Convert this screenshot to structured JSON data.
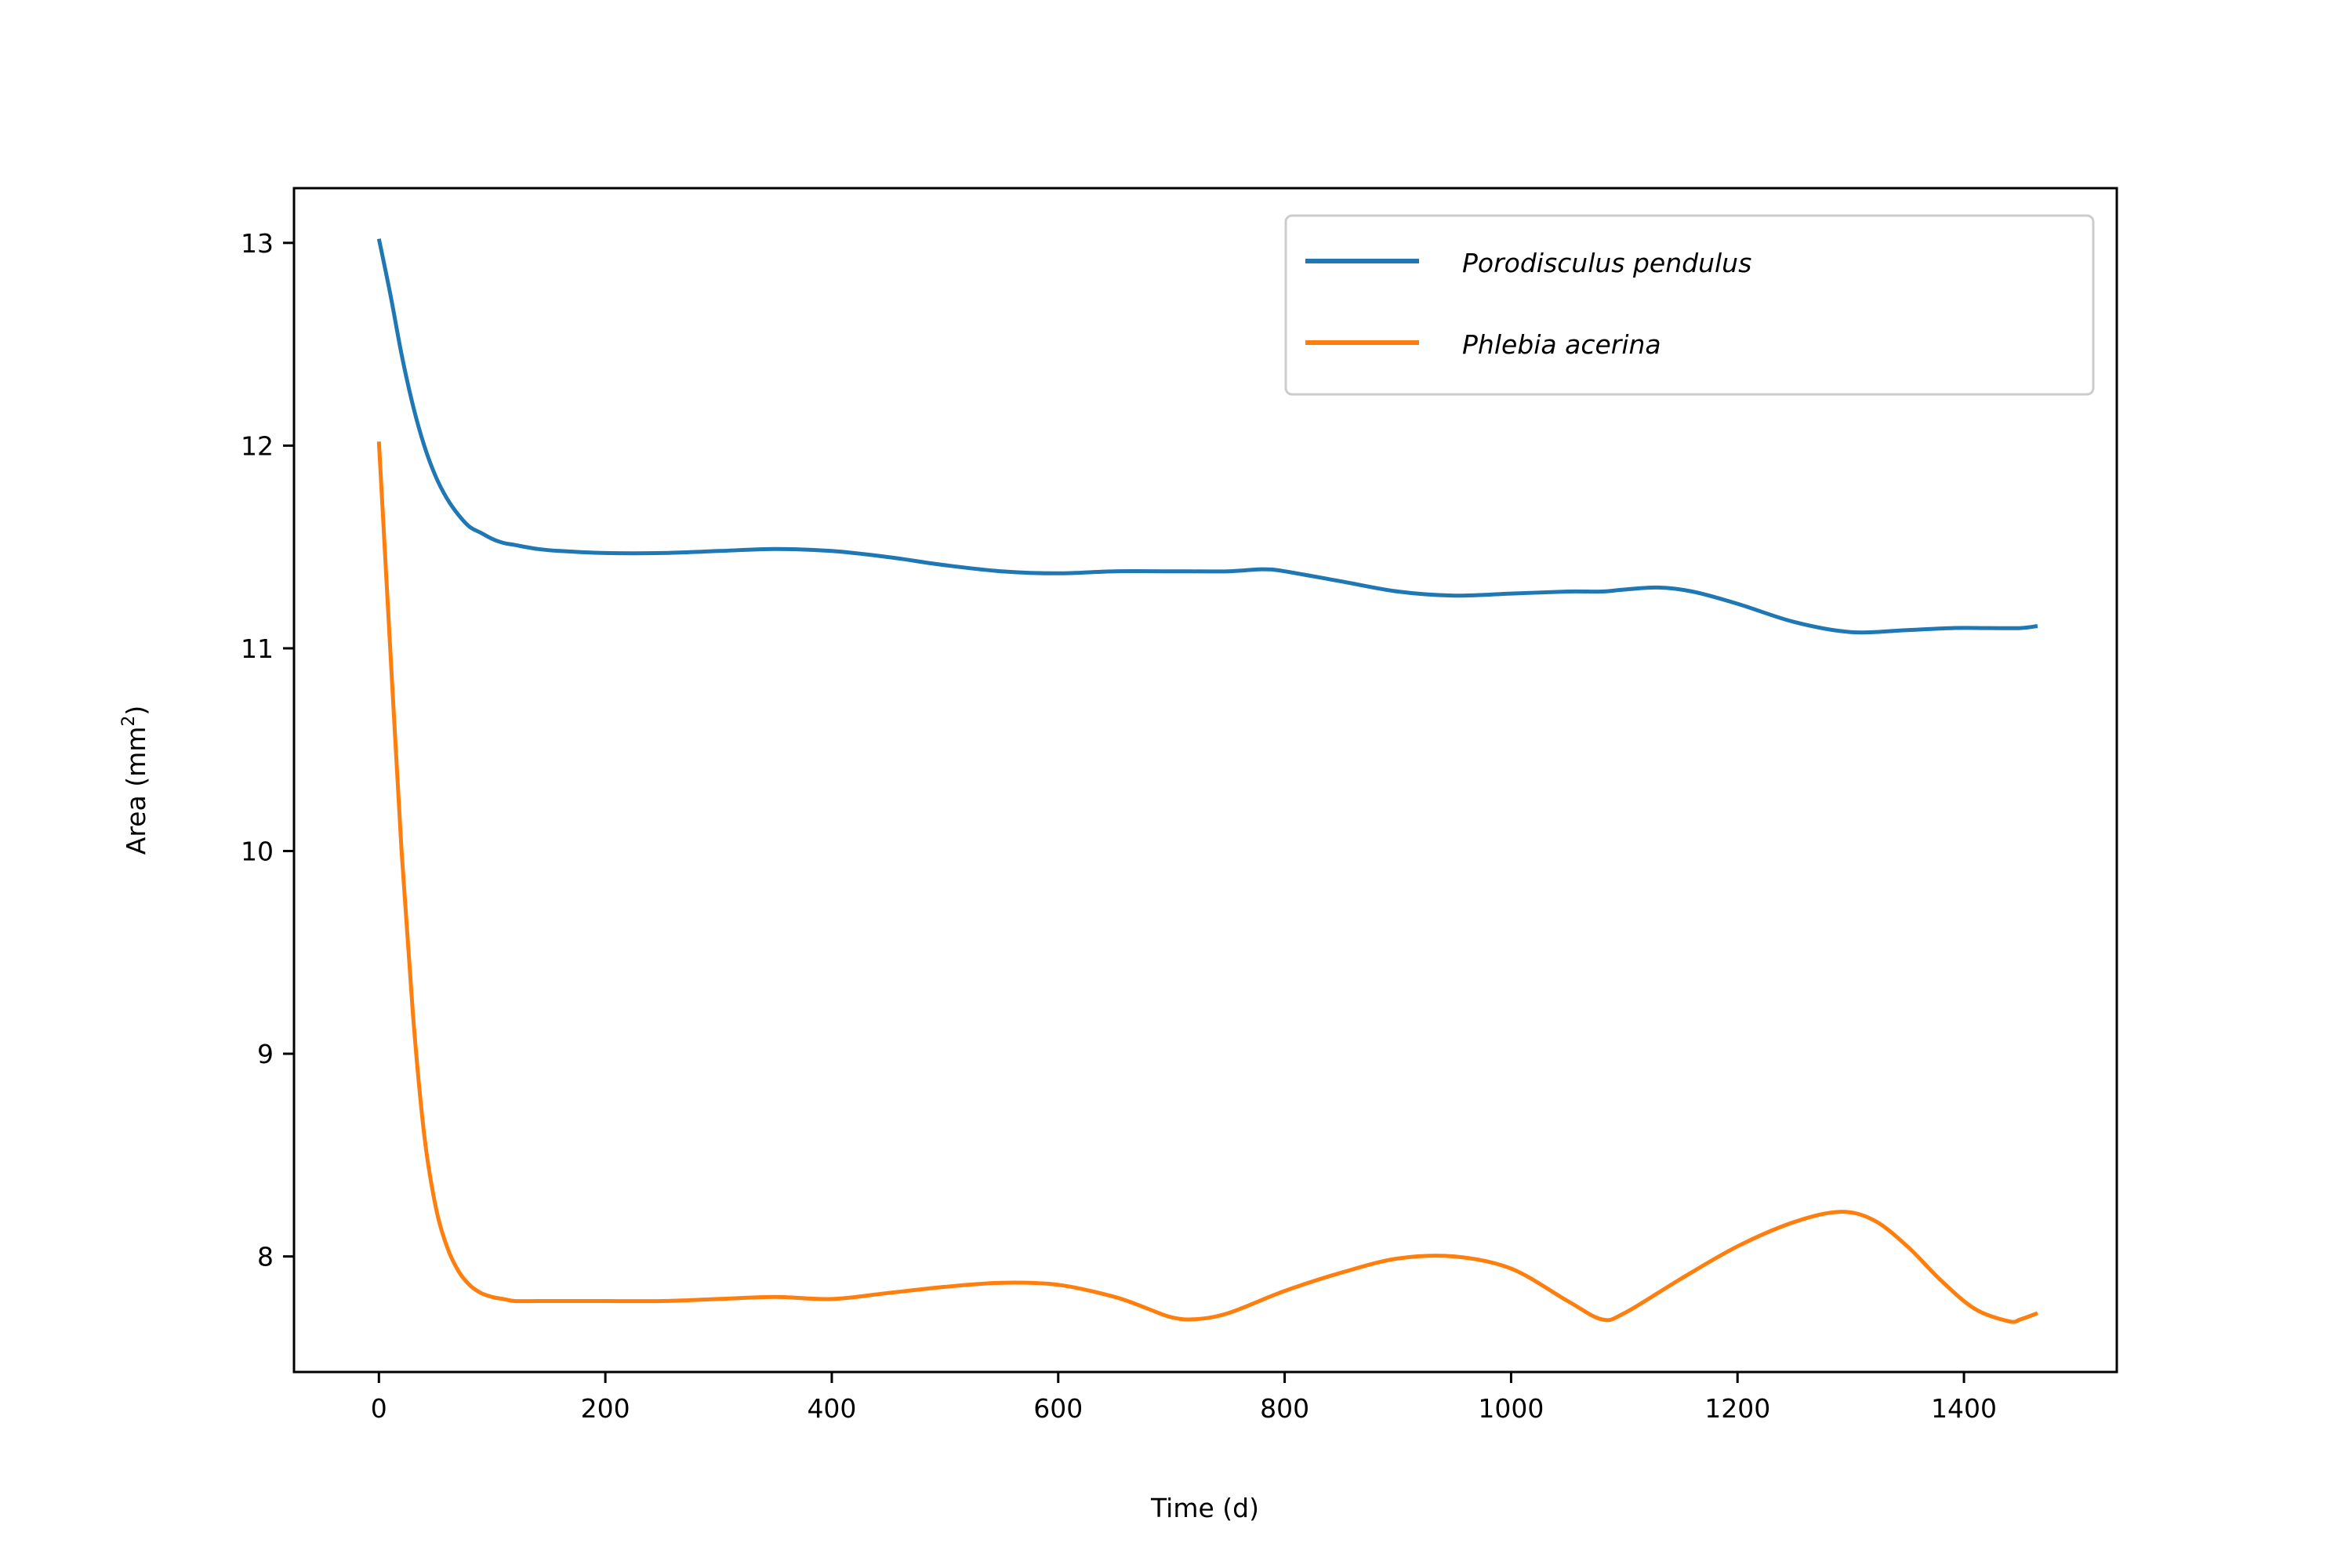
{
  "chart_data": {
    "type": "line",
    "title": "",
    "xlabel": "Time (d)",
    "ylabel_main": "Area (mm",
    "ylabel_sup": "2",
    "ylabel_close": ")",
    "xlim": [
      -75,
      1535
    ],
    "ylim": [
      7.43,
      13.27
    ],
    "xticks": [
      0,
      200,
      400,
      600,
      800,
      1000,
      1200,
      1400
    ],
    "yticks": [
      8,
      9,
      10,
      11,
      12,
      13
    ],
    "legend_position": "top-right",
    "grid": false,
    "series": [
      {
        "name": "Porodisculus pendulus",
        "color": "#1f77b4",
        "x": [
          0,
          10,
          20,
          30,
          40,
          50,
          60,
          70,
          80,
          90,
          100,
          110,
          120,
          140,
          160,
          200,
          250,
          300,
          350,
          400,
          450,
          500,
          550,
          600,
          650,
          700,
          750,
          780,
          800,
          850,
          900,
          950,
          1000,
          1050,
          1080,
          1100,
          1130,
          1160,
          1200,
          1250,
          1300,
          1350,
          1390,
          1420,
          1450,
          1465
        ],
        "y": [
          13.02,
          12.75,
          12.45,
          12.2,
          12.0,
          11.85,
          11.74,
          11.66,
          11.6,
          11.57,
          11.54,
          11.52,
          11.51,
          11.49,
          11.48,
          11.47,
          11.47,
          11.48,
          11.49,
          11.48,
          11.45,
          11.41,
          11.38,
          11.37,
          11.38,
          11.38,
          11.38,
          11.39,
          11.38,
          11.33,
          11.28,
          11.26,
          11.27,
          11.28,
          11.28,
          11.29,
          11.3,
          11.28,
          11.22,
          11.13,
          11.08,
          11.09,
          11.1,
          11.1,
          11.1,
          11.11
        ]
      },
      {
        "name": "Phlebia acerina",
        "color": "#ff7f0e",
        "x": [
          0,
          10,
          20,
          30,
          40,
          50,
          60,
          70,
          80,
          90,
          100,
          110,
          120,
          140,
          160,
          200,
          250,
          300,
          350,
          400,
          450,
          500,
          550,
          600,
          650,
          680,
          700,
          720,
          750,
          800,
          850,
          900,
          950,
          1000,
          1050,
          1080,
          1100,
          1150,
          1200,
          1250,
          1290,
          1320,
          1350,
          1380,
          1410,
          1440,
          1450,
          1465
        ],
        "y": [
          12.02,
          11.0,
          10.0,
          9.2,
          8.6,
          8.25,
          8.05,
          7.93,
          7.86,
          7.82,
          7.8,
          7.79,
          7.78,
          7.78,
          7.78,
          7.78,
          7.78,
          7.79,
          7.8,
          7.79,
          7.82,
          7.85,
          7.87,
          7.86,
          7.8,
          7.74,
          7.7,
          7.69,
          7.72,
          7.83,
          7.92,
          7.99,
          8.0,
          7.94,
          7.78,
          7.69,
          7.72,
          7.89,
          8.05,
          8.17,
          8.22,
          8.18,
          8.05,
          7.88,
          7.74,
          7.68,
          7.69,
          7.72
        ]
      }
    ]
  }
}
